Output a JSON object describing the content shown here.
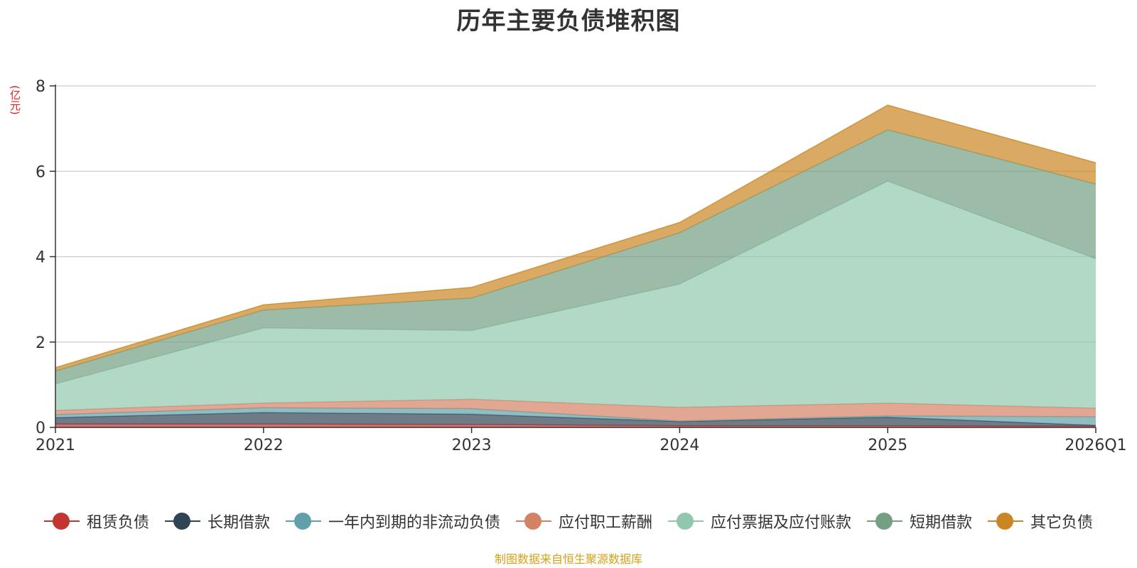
{
  "title": "历年主要负债堆积图",
  "unit_label": "(亿元)",
  "source": "制图数据来自恒生聚源数据库",
  "chart_data": {
    "type": "area",
    "stacked": true,
    "categories": [
      "2021",
      "2022",
      "2023",
      "2024",
      "2025",
      "2026Q1"
    ],
    "ylim": [
      0,
      8
    ],
    "yticks": [
      "0",
      "2",
      "4",
      "6",
      "8"
    ],
    "grid": true,
    "legend_position": "bottom",
    "series": [
      {
        "name": "租赁负债",
        "color": "#c23531",
        "values": [
          0.08,
          0.08,
          0.07,
          0.04,
          0.04,
          0.03
        ]
      },
      {
        "name": "长期借款",
        "color": "#2f4554",
        "values": [
          0.15,
          0.27,
          0.24,
          0.1,
          0.2,
          0.02
        ]
      },
      {
        "name": "一年内到期的非流动负债",
        "color": "#61a0a8",
        "values": [
          0.07,
          0.11,
          0.13,
          0.01,
          0.03,
          0.2
        ]
      },
      {
        "name": "应付职工薪酬",
        "color": "#d48265",
        "values": [
          0.1,
          0.11,
          0.22,
          0.32,
          0.3,
          0.2
        ]
      },
      {
        "name": "应付票据及应付账款",
        "color": "#91c7ae",
        "values": [
          0.62,
          1.76,
          1.61,
          2.89,
          5.2,
          3.5
        ]
      },
      {
        "name": "短期借款",
        "color": "#749f83",
        "values": [
          0.3,
          0.42,
          0.76,
          1.2,
          1.2,
          1.75
        ]
      },
      {
        "name": "其它负债",
        "color": "#ca8622",
        "values": [
          0.08,
          0.12,
          0.25,
          0.24,
          0.58,
          0.5
        ]
      }
    ]
  }
}
